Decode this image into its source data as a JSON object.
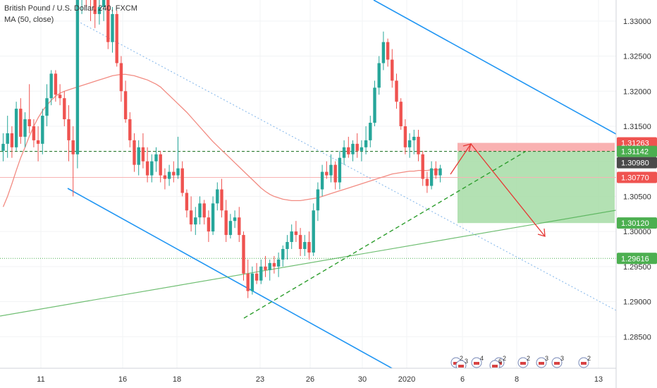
{
  "header": {
    "symbol_line": "British Pound / U.S. Dollar, 240, FXCM",
    "indicator_line": "MA (50, close)"
  },
  "chart_data": {
    "type": "candlestick",
    "ylim": [
      1.2805,
      1.333
    ],
    "y_ticks": [
      "1.33000",
      "1.32500",
      "1.32000",
      "1.31500",
      "1.31000",
      "1.30500",
      "1.30000",
      "1.29500",
      "1.29000",
      "1.28500"
    ],
    "x_tick_labels": [
      "11",
      "16",
      "18",
      "23",
      "26",
      "30",
      "2020",
      "6",
      "8",
      "13"
    ],
    "price_tags": [
      {
        "label": "1.31263",
        "value": 1.31263,
        "color": "#ef5350"
      },
      {
        "label": "1.31142",
        "value": 1.31142,
        "color": "#4caf50"
      },
      {
        "label": "1.30980",
        "value": 1.3098,
        "color": "#4a4a4a"
      },
      {
        "label": "1.30770",
        "value": 1.3077,
        "color": "#ef5350"
      },
      {
        "label": "1.30120",
        "value": 1.3012,
        "color": "#4caf50"
      },
      {
        "label": "1.29616",
        "value": 1.29616,
        "color": "#4caf50"
      }
    ],
    "event_badges": [
      "2",
      "4",
      "2",
      "2",
      "3",
      "3",
      "2",
      "3",
      "6"
    ],
    "colors": {
      "up": "#26a69a",
      "down": "#ef5350",
      "ma": "#f28b82",
      "channel": "#2196f3",
      "support": "#4caf50",
      "sell_projection": "#e53935"
    },
    "candles": [
      [
        1.3115,
        1.314,
        1.31,
        1.3125
      ],
      [
        1.3125,
        1.3165,
        1.3105,
        1.314
      ],
      [
        1.314,
        1.315,
        1.3105,
        1.312
      ],
      [
        1.312,
        1.3185,
        1.3115,
        1.3175
      ],
      [
        1.3175,
        1.319,
        1.3125,
        1.3135
      ],
      [
        1.3135,
        1.317,
        1.312,
        1.316
      ],
      [
        1.316,
        1.321,
        1.314,
        1.315
      ],
      [
        1.315,
        1.316,
        1.312,
        1.313
      ],
      [
        1.313,
        1.315,
        1.31,
        1.3125
      ],
      [
        1.3125,
        1.3175,
        1.311,
        1.3165
      ],
      [
        1.3165,
        1.321,
        1.315,
        1.319
      ],
      [
        1.319,
        1.323,
        1.318,
        1.3225
      ],
      [
        1.3225,
        1.323,
        1.3185,
        1.3195
      ],
      [
        1.3195,
        1.321,
        1.318,
        1.319
      ],
      [
        1.319,
        1.32,
        1.315,
        1.316
      ],
      [
        1.316,
        1.318,
        1.31,
        1.313
      ],
      [
        1.313,
        1.315,
        1.305,
        1.311
      ],
      [
        1.311,
        1.335,
        1.309,
        1.333
      ],
      [
        1.333,
        1.339,
        1.331,
        1.336
      ],
      [
        1.336,
        1.338,
        1.332,
        1.335
      ],
      [
        1.335,
        1.337,
        1.33,
        1.333
      ],
      [
        1.333,
        1.3345,
        1.329,
        1.331
      ],
      [
        1.331,
        1.334,
        1.3295,
        1.332
      ],
      [
        1.332,
        1.3345,
        1.33,
        1.333
      ],
      [
        1.333,
        1.334,
        1.326,
        1.327
      ],
      [
        1.327,
        1.332,
        1.3255,
        1.331
      ],
      [
        1.331,
        1.3315,
        1.3235,
        1.324
      ],
      [
        1.324,
        1.325,
        1.3185,
        1.32
      ],
      [
        1.32,
        1.3215,
        1.3155,
        1.316
      ],
      [
        1.316,
        1.317,
        1.312,
        1.313
      ],
      [
        1.313,
        1.314,
        1.3085,
        1.3095
      ],
      [
        1.3095,
        1.313,
        1.308,
        1.312
      ],
      [
        1.312,
        1.314,
        1.309,
        1.31
      ],
      [
        1.31,
        1.312,
        1.307,
        1.308
      ],
      [
        1.308,
        1.311,
        1.307,
        1.31
      ],
      [
        1.31,
        1.312,
        1.3085,
        1.311
      ],
      [
        1.311,
        1.3115,
        1.307,
        1.308
      ],
      [
        1.308,
        1.309,
        1.306,
        1.3075
      ],
      [
        1.3075,
        1.3095,
        1.3065,
        1.3085
      ],
      [
        1.3085,
        1.31,
        1.307,
        1.308
      ],
      [
        1.308,
        1.3135,
        1.3075,
        1.309
      ],
      [
        1.309,
        1.31,
        1.305,
        1.3055
      ],
      [
        1.3055,
        1.306,
        1.302,
        1.303
      ],
      [
        1.303,
        1.305,
        1.3,
        1.301
      ],
      [
        1.301,
        1.3035,
        1.2995,
        1.302
      ],
      [
        1.302,
        1.305,
        1.301,
        1.304
      ],
      [
        1.304,
        1.3045,
        1.301,
        1.302
      ],
      [
        1.302,
        1.303,
        1.2985,
        1.3
      ],
      [
        1.3,
        1.305,
        1.2995,
        1.304
      ],
      [
        1.304,
        1.307,
        1.303,
        1.306
      ],
      [
        1.306,
        1.3075,
        1.302,
        1.303
      ],
      [
        1.303,
        1.3045,
        1.2985,
        1.2995
      ],
      [
        1.2995,
        1.3025,
        1.299,
        1.3015
      ],
      [
        1.3015,
        1.303,
        1.3005,
        1.302
      ],
      [
        1.302,
        1.3035,
        1.2985,
        1.2995
      ],
      [
        1.2995,
        1.3,
        1.293,
        1.294
      ],
      [
        1.294,
        1.296,
        1.2905,
        1.2915
      ],
      [
        1.2915,
        1.295,
        1.291,
        1.294
      ],
      [
        1.294,
        1.2955,
        1.2925,
        1.293
      ],
      [
        1.293,
        1.296,
        1.2925,
        1.295
      ],
      [
        1.295,
        1.2965,
        1.2935,
        1.2945
      ],
      [
        1.2945,
        1.296,
        1.293,
        1.2955
      ],
      [
        1.2955,
        1.2965,
        1.294,
        1.295
      ],
      [
        1.295,
        1.297,
        1.2935,
        1.296
      ],
      [
        1.296,
        1.298,
        1.295,
        1.2975
      ],
      [
        1.2975,
        1.2995,
        1.296,
        1.2985
      ],
      [
        1.2985,
        1.301,
        1.2975,
        1.3
      ],
      [
        1.3,
        1.3015,
        1.2985,
        1.2995
      ],
      [
        1.2995,
        1.3005,
        1.2965,
        1.2975
      ],
      [
        1.2975,
        1.2995,
        1.2965,
        1.2985
      ],
      [
        1.2985,
        1.3,
        1.296,
        1.297
      ],
      [
        1.297,
        1.304,
        1.2965,
        1.303
      ],
      [
        1.303,
        1.307,
        1.3015,
        1.306
      ],
      [
        1.306,
        1.3095,
        1.305,
        1.3085
      ],
      [
        1.3085,
        1.31,
        1.3075,
        1.308
      ],
      [
        1.308,
        1.311,
        1.307,
        1.3095
      ],
      [
        1.3095,
        1.31,
        1.306,
        1.307
      ],
      [
        1.307,
        1.3115,
        1.306,
        1.3105
      ],
      [
        1.3105,
        1.313,
        1.3095,
        1.312
      ],
      [
        1.312,
        1.3135,
        1.3105,
        1.311
      ],
      [
        1.311,
        1.313,
        1.31,
        1.3125
      ],
      [
        1.3125,
        1.314,
        1.3105,
        1.3115
      ],
      [
        1.3115,
        1.313,
        1.31,
        1.312
      ],
      [
        1.312,
        1.315,
        1.311,
        1.313
      ],
      [
        1.313,
        1.3165,
        1.312,
        1.3155
      ],
      [
        1.3155,
        1.3215,
        1.315,
        1.3205
      ],
      [
        1.3205,
        1.325,
        1.3195,
        1.324
      ],
      [
        1.324,
        1.3285,
        1.323,
        1.327
      ],
      [
        1.327,
        1.3275,
        1.3235,
        1.3245
      ],
      [
        1.3245,
        1.326,
        1.3205,
        1.3215
      ],
      [
        1.3215,
        1.3225,
        1.3175,
        1.3185
      ],
      [
        1.3185,
        1.319,
        1.3145,
        1.315
      ],
      [
        1.315,
        1.316,
        1.311,
        1.312
      ],
      [
        1.312,
        1.314,
        1.3105,
        1.313
      ],
      [
        1.313,
        1.3145,
        1.311,
        1.3135
      ],
      [
        1.3135,
        1.3145,
        1.31,
        1.311
      ],
      [
        1.311,
        1.3115,
        1.3065,
        1.3075
      ],
      [
        1.3075,
        1.3085,
        1.3055,
        1.3065
      ],
      [
        1.3065,
        1.31,
        1.306,
        1.309
      ],
      [
        1.309,
        1.31,
        1.3075,
        1.308
      ],
      [
        1.308,
        1.3095,
        1.307,
        1.309
      ]
    ],
    "ma": [
      1.3035,
      1.305,
      1.3068,
      1.3087,
      1.3105,
      1.312,
      1.3136,
      1.315,
      1.3162,
      1.3172,
      1.318,
      1.3187,
      1.3193,
      1.3197,
      1.32,
      1.3202,
      1.3204,
      1.3206,
      1.3208,
      1.321,
      1.3212,
      1.3214,
      1.3216,
      1.3218,
      1.322,
      1.3222,
      1.3223,
      1.3224,
      1.3224,
      1.3223,
      1.3222,
      1.322,
      1.3218,
      1.3216,
      1.3213,
      1.321,
      1.3206,
      1.32,
      1.3194,
      1.3188,
      1.3182,
      1.3176,
      1.317,
      1.3163,
      1.3156,
      1.3149,
      1.3142,
      1.3135,
      1.3128,
      1.3122,
      1.3116,
      1.311,
      1.3104,
      1.3098,
      1.3092,
      1.3086,
      1.308,
      1.3074,
      1.3068,
      1.3062,
      1.3057,
      1.3053,
      1.305,
      1.3048,
      1.3046,
      1.3045,
      1.3044,
      1.3044,
      1.3044,
      1.3045,
      1.3046,
      1.3047,
      1.3048,
      1.305,
      1.3052,
      1.3054,
      1.3056,
      1.3058,
      1.306,
      1.3062,
      1.3064,
      1.3066,
      1.3068,
      1.307,
      1.3072,
      1.3074,
      1.3076,
      1.3078,
      1.308,
      1.3082,
      1.3083,
      1.3084,
      1.3085,
      1.3086,
      1.3086,
      1.3087,
      1.3087,
      1.3087,
      1.3088,
      1.3088,
      1.3088
    ]
  }
}
